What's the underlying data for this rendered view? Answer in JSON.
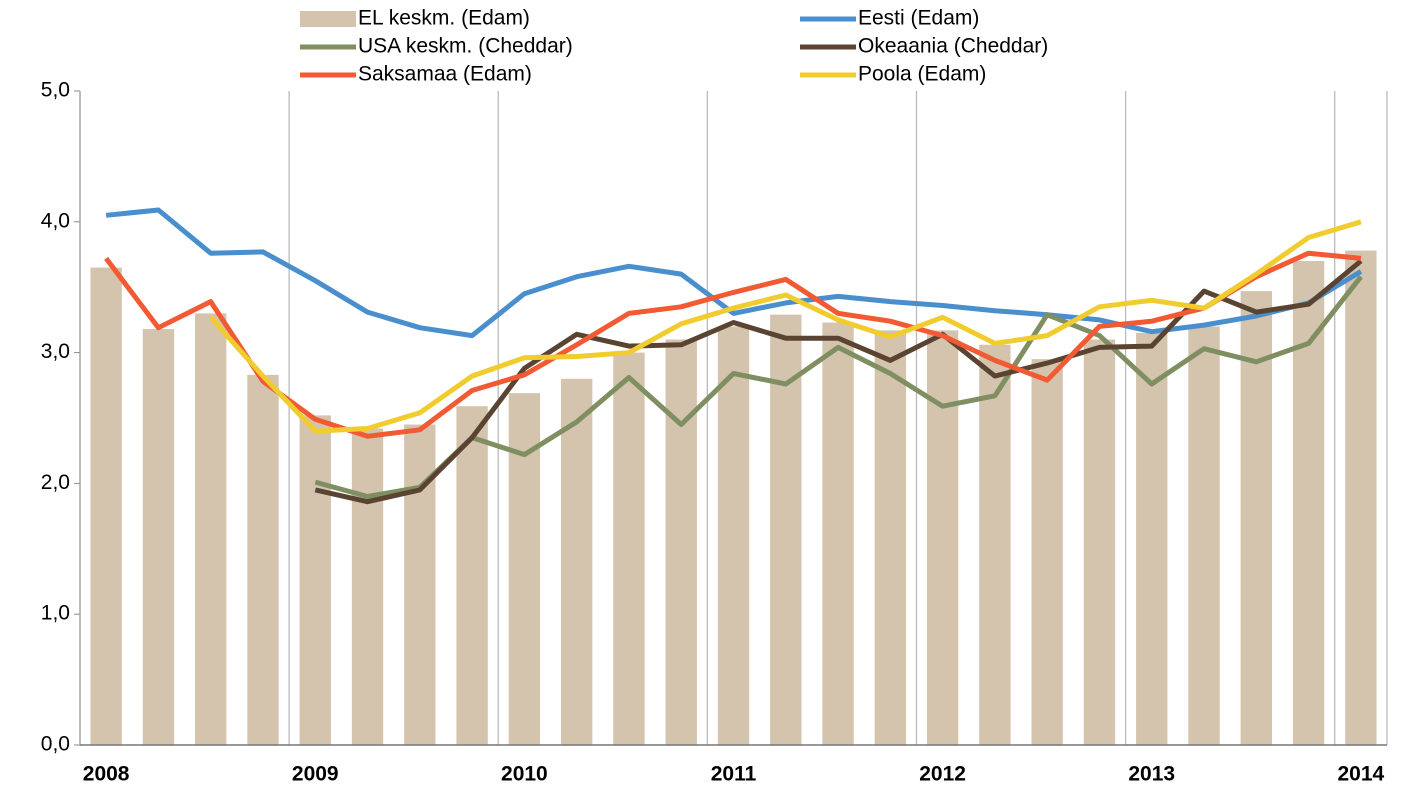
{
  "chart_data": {
    "type": "bar",
    "categories": [
      "2008",
      null,
      null,
      null,
      "2009",
      null,
      null,
      null,
      "2010",
      null,
      null,
      null,
      "2011",
      null,
      null,
      null,
      "2012",
      null,
      null,
      null,
      "2013",
      null,
      null,
      null,
      "2014"
    ],
    "series": [
      {
        "name": "EL keskm. (Edam)",
        "type": "bar",
        "color": "#d4c4ae",
        "values": [
          3.65,
          3.18,
          3.3,
          2.83,
          2.52,
          2.42,
          2.45,
          2.59,
          2.69,
          2.8,
          3.0,
          3.1,
          3.2,
          3.29,
          3.23,
          3.17,
          3.17,
          3.06,
          2.95,
          3.1,
          3.15,
          3.2,
          3.47,
          3.7,
          3.78
        ]
      },
      {
        "name": "Eesti (Edam)",
        "type": "line",
        "color": "#4a8fcd",
        "values": [
          4.05,
          4.09,
          3.76,
          3.77,
          3.55,
          3.31,
          3.19,
          3.13,
          3.45,
          3.58,
          3.66,
          3.6,
          3.3,
          3.38,
          3.43,
          3.39,
          3.36,
          3.32,
          3.29,
          3.25,
          3.16,
          3.21,
          3.28,
          3.38,
          3.62
        ]
      },
      {
        "name": "USA keskm. (Cheddar)",
        "type": "line",
        "color": "#7f8f61",
        "values": [
          null,
          null,
          null,
          null,
          2.01,
          1.9,
          1.97,
          2.35,
          2.22,
          2.47,
          2.81,
          2.45,
          2.84,
          2.76,
          3.04,
          2.84,
          2.59,
          2.67,
          3.29,
          3.13,
          2.76,
          3.03,
          2.93,
          3.07,
          3.58
        ]
      },
      {
        "name": "Okeaania (Cheddar)",
        "type": "line",
        "color": "#5a4431",
        "values": [
          null,
          null,
          null,
          null,
          1.95,
          1.86,
          1.95,
          2.35,
          2.88,
          3.14,
          3.05,
          3.06,
          3.23,
          3.11,
          3.11,
          2.94,
          3.14,
          2.82,
          2.92,
          3.04,
          3.05,
          3.47,
          3.31,
          3.37,
          3.7
        ]
      },
      {
        "name": "Saksamaa (Edam)",
        "type": "line",
        "color": "#f15a33",
        "values": [
          3.72,
          3.19,
          3.39,
          2.78,
          2.49,
          2.36,
          2.41,
          2.71,
          2.83,
          3.06,
          3.3,
          3.35,
          3.46,
          3.56,
          3.3,
          3.24,
          3.13,
          2.94,
          2.79,
          3.2,
          3.24,
          3.34,
          3.58,
          3.76,
          3.72
        ]
      },
      {
        "name": "Poola (Edam)",
        "type": "line",
        "color": "#f0cc2e",
        "values": [
          null,
          null,
          3.27,
          2.82,
          2.4,
          2.42,
          2.54,
          2.82,
          2.96,
          2.97,
          3.0,
          3.22,
          3.34,
          3.44,
          3.25,
          3.12,
          3.27,
          3.07,
          3.13,
          3.35,
          3.4,
          3.34,
          3.6,
          3.88,
          4.0
        ]
      }
    ],
    "ylim": [
      0,
      5
    ],
    "yticks": [
      {
        "value": 0,
        "label": "0,0"
      },
      {
        "value": 1,
        "label": "1,0"
      },
      {
        "value": 2,
        "label": "2,0"
      },
      {
        "value": 3,
        "label": "3,0"
      },
      {
        "value": 4,
        "label": "4,0"
      },
      {
        "value": 5,
        "label": "5,0"
      }
    ]
  }
}
